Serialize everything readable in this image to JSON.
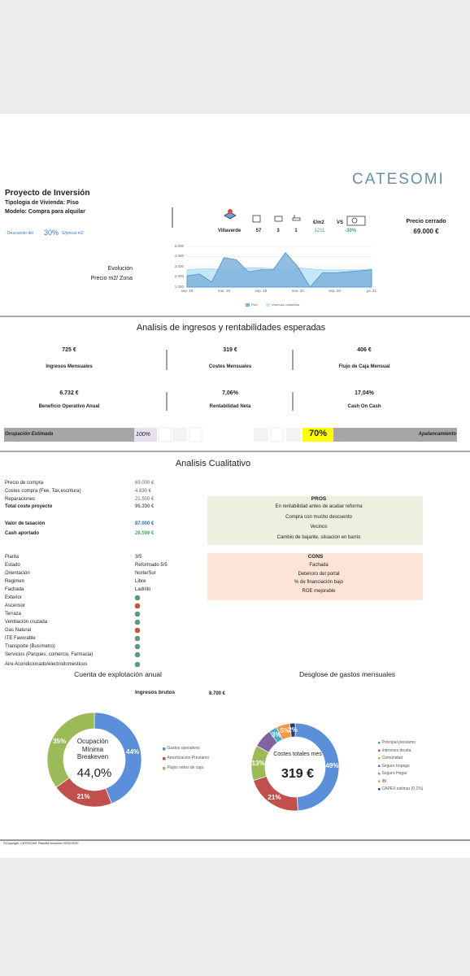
{
  "header": {
    "logo": "CATESOMI",
    "title": "Proyecto de Inversión",
    "tipologia": "Tipologia de Vivienda: Piso",
    "modelo": "Modelo:  Compra para alquilar",
    "descuento": {
      "prefix": "- Descuento del",
      "value": "30%",
      "suffix": "S/precio m2"
    }
  },
  "location": {
    "zona": "Villaverde",
    "m2": "57",
    "habitaciones": "3",
    "banos": "1",
    "eur_m2_label": "€/m2",
    "eur_m2": "1211",
    "vs": "VS",
    "diferencia": "-30%"
  },
  "precio": {
    "label": "Precio cerrado",
    "value": "69.000 €"
  },
  "evolution": {
    "label_1": "Evolución",
    "label_2": "Precio m2/ Zona",
    "categories": [
      "sep. 18",
      null,
      null,
      "mar. 19",
      null,
      null,
      "sep. 19",
      null,
      null,
      "mar. 20",
      null,
      null,
      "sep. 20",
      null,
      null,
      "jul. 21"
    ],
    "ylim": [
      1000,
      5000
    ],
    "yticks": [
      {
        "value": 1000,
        "label": "1.000"
      },
      {
        "value": 2000,
        "label": "2.000"
      },
      {
        "value": 3000,
        "label": "3.000"
      },
      {
        "value": 4000,
        "label": "4.000"
      },
      {
        "value": 5000,
        "label": "5.000"
      }
    ],
    "series": [
      {
        "name": "Piso",
        "color": "#7fb3dc",
        "values": [
          2100,
          2300,
          1500,
          3900,
          3700,
          2500,
          2700,
          2700,
          4400,
          3000,
          1000,
          2400,
          2400,
          2500,
          2600,
          2700
        ]
      },
      {
        "name": "Vivienda unifamiliar",
        "color": "#c4e6f5",
        "values": [
          2700,
          2800,
          2800,
          2700,
          2800,
          2900,
          2900,
          2800,
          2800,
          2900,
          2800,
          2700,
          2700,
          2700,
          2700,
          2800
        ]
      }
    ]
  },
  "ingresos": {
    "title": "Analisis de ingresos y rentabilidades esperadas",
    "kpis": [
      {
        "value": "725 €",
        "label": "Ingresos Mensuales"
      },
      {
        "value": "319 €",
        "label": "Costes Mensuales"
      },
      {
        "value": "406 €",
        "label": "Flujo de Caja Mensual"
      },
      {
        "value": "6.732 €",
        "label": "Beneficio Operativo Anual"
      },
      {
        "value": "7,06%",
        "label": "Rentabilidad Neta"
      },
      {
        "value": "17,04%",
        "label": "Cash On Cash"
      }
    ]
  },
  "ocupacion": {
    "label": "Ocupación Estimada",
    "value": "100%",
    "apalancamiento_value": "70%",
    "apalancamiento_label": "Apalancamiento"
  },
  "cualitativo": {
    "title": "Analisis Cualitativo",
    "finance": [
      {
        "label": "Precio de compra",
        "value": "69.000 €"
      },
      {
        "label": "Costes compra (Fee, Tax,escritura)",
        "value": "4.830 €"
      },
      {
        "label": "Reparaciones",
        "value": "21.500 €"
      },
      {
        "label": "Total coste proyecto",
        "value": "95.330 €",
        "bold": true
      },
      {
        "label": "Valor de tasación",
        "value": "87.000 €",
        "bold": true,
        "color": "#2f6bb0"
      },
      {
        "label": "Cash aportado",
        "value": "28.599 €",
        "bold": true,
        "color": "#3fa66a"
      }
    ],
    "pros": {
      "title": "PROS",
      "items": [
        "En rentabilidad antes de acabar reforma",
        "Compra con mucho descuento",
        "Vecinos",
        "Cambio de bajante, situación en barrio"
      ]
    },
    "cons": {
      "title": "CONS",
      "items": [
        "Fachada",
        "Deterioro del portal",
        "% de financiación bajo",
        "ROE mejorable"
      ]
    },
    "property": [
      {
        "label": "Planta",
        "value": "3/5"
      },
      {
        "label": "Estado",
        "value": "Reformado 5/5"
      },
      {
        "label": "Orientación",
        "value": "Norte/Sur"
      },
      {
        "label": "Regimen",
        "value": "Libre"
      },
      {
        "label": "Fachada",
        "value": "Ladrillo"
      }
    ],
    "features": [
      {
        "label": "Exterior",
        "color": "#5b9a7d"
      },
      {
        "label": "Ascensor",
        "color": "#c8553d"
      },
      {
        "label": "Terraza",
        "color": "#5b9a7d"
      },
      {
        "label": "Ventilación cruzada",
        "color": "#5b9a7d"
      },
      {
        "label": "Gas Natural",
        "color": "#c8553d"
      },
      {
        "label": "ITE Favorable",
        "color": "#5b9a7d"
      },
      {
        "label": "Transporte (Bus/metro)",
        "color": "#5b9a7d"
      },
      {
        "label": "Servicios (Parques, comercio, Farmacia)",
        "color": "#5b9a7d"
      },
      {
        "label": "Aire Acondicionado/electrodomesticos",
        "color": "#5b9a7d"
      }
    ]
  },
  "explotacion": {
    "title": "Cuenta de explotación anual",
    "ingresos_label": "Ingresos brutos",
    "ingresos_value": "8.700 €",
    "center_label": "Ocupación Mínima Breakeven",
    "center_value": "44,0%",
    "categories": [
      "Gastos operativos",
      "Amortización Prestamo",
      "Flujos netos de caja"
    ],
    "values": [
      44,
      21,
      35
    ],
    "value_labels": [
      "44%",
      "21%",
      "35%"
    ],
    "colors": [
      "#5b8fd9",
      "#c0504d",
      "#9bbb59"
    ]
  },
  "gastos": {
    "title": "Desglose de gastos mensuales",
    "center_label": "Costes totales mes",
    "center_value": "319 €",
    "categories": [
      "Principal prestamo",
      "Intereses deuda",
      "Comunidad",
      "Seguro Impago",
      "Seguro Hogar",
      "IBI",
      "CAPEX estimar (0,1%)"
    ],
    "values": [
      49,
      21,
      13,
      7,
      3,
      5,
      2
    ],
    "value_labels": [
      "49%",
      "21%",
      "13%",
      null,
      "3%",
      "5%",
      "2%"
    ],
    "colors": [
      "#5b8fd9",
      "#c0504d",
      "#9bbb59",
      "#8064a2",
      "#4bacc6",
      "#f79646",
      "#1f3f7a"
    ]
  },
  "footer": "©Copyright. CATESOMI. Plantilla inversión 05/02/2020"
}
